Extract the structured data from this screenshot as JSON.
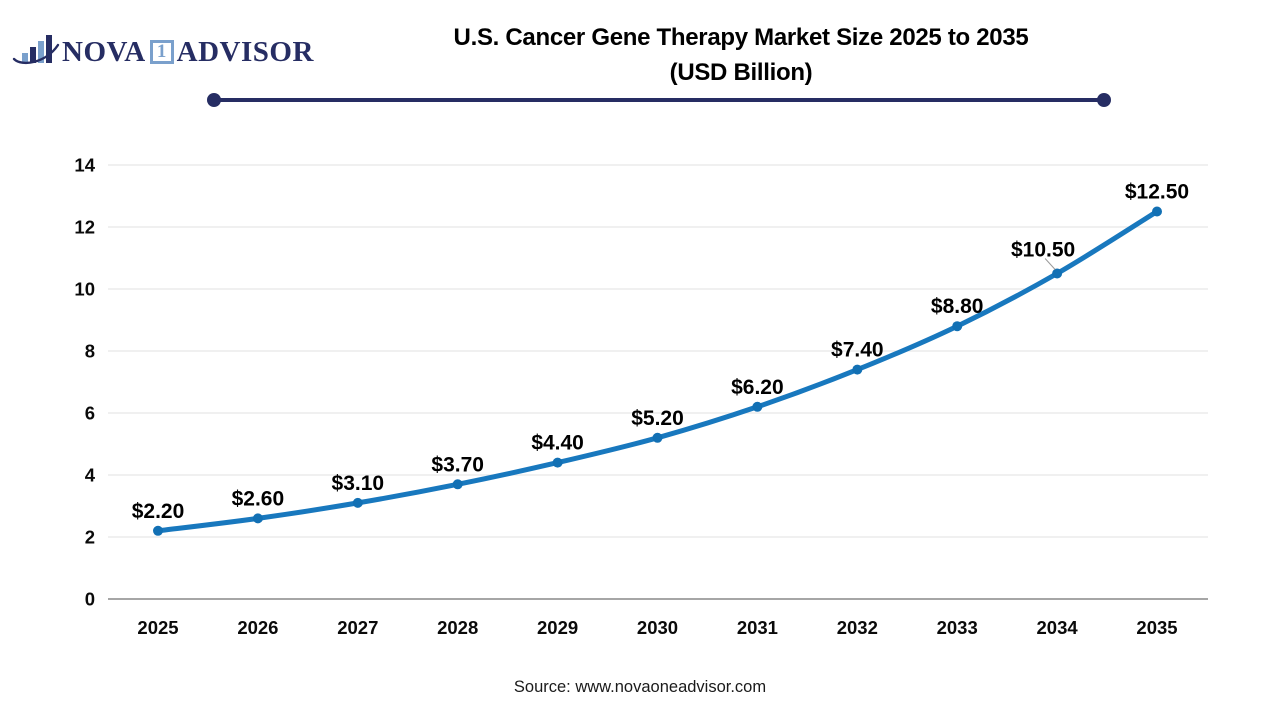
{
  "logo": {
    "icon": "bar-chart-swoosh-icon",
    "part1": "NOVA",
    "part2": "1",
    "part3": "ADVISOR"
  },
  "colors": {
    "line": "#1878be",
    "marker": "#1270b4",
    "navy": "#262d63",
    "logo_light_blue": "#7aa0cc",
    "grid": "#e8e8e8",
    "axis_baseline": "#a6a6a6",
    "leader": "#9a9a9a",
    "text": "#000000"
  },
  "chart_data": {
    "type": "line",
    "title": "U.S. Cancer Gene Therapy Market Size 2025 to 2035",
    "subtitle": "(USD Billion)",
    "categories": [
      "2025",
      "2026",
      "2027",
      "2028",
      "2029",
      "2030",
      "2031",
      "2032",
      "2033",
      "2034",
      "2035"
    ],
    "values": [
      2.2,
      2.6,
      3.1,
      3.7,
      4.4,
      5.2,
      6.2,
      7.4,
      8.8,
      10.5,
      12.5
    ],
    "point_labels": [
      "$2.20",
      "$2.60",
      "$3.10",
      "$3.70",
      "$4.40",
      "$5.20",
      "$6.20",
      "$7.40",
      "$8.80",
      "$10.50",
      "$12.50"
    ],
    "xlabel": "",
    "ylabel": "",
    "ylim": [
      0,
      14
    ],
    "yticks": [
      0,
      2,
      4,
      6,
      8,
      10,
      12,
      14
    ],
    "grid": true,
    "legend": "none",
    "smooth": true
  },
  "footer": {
    "source": "Source: www.novaoneadvisor.com"
  }
}
